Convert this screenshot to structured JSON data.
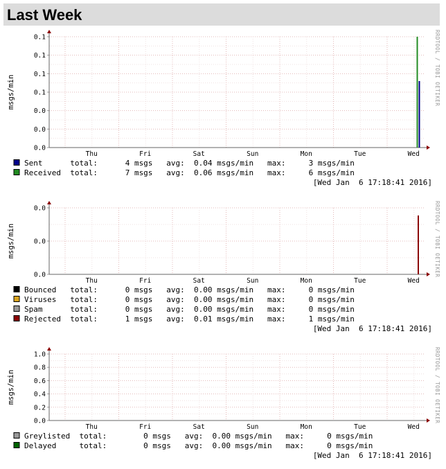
{
  "page": {
    "title": "Last Week"
  },
  "chart_data": [
    {
      "type": "bar",
      "title": "",
      "ylabel": "msgs/min",
      "watermark": "RRDTOOL / TOBI OETIKER",
      "x_labels": [
        "Thu",
        "Fri",
        "Sat",
        "Sun",
        "Mon",
        "Tue",
        "Wed"
      ],
      "y_ticks": [
        "0.0",
        "0.0",
        "0.0",
        "0.1",
        "0.1",
        "0.1",
        "0.1"
      ],
      "ylim": [
        0,
        0.12
      ],
      "grid": true,
      "series": [
        {
          "name": "Sent",
          "color": "#00008b",
          "bar_value": 0.072,
          "total": "4 msgs",
          "avg": "0.04 msgs/min",
          "max": "3 msgs/min"
        },
        {
          "name": "Received",
          "color": "#228b22",
          "bar_value": 0.12,
          "total": "7 msgs",
          "avg": "0.06 msgs/min",
          "max": "6 msgs/min"
        }
      ],
      "timestamp": "[Wed Jan  6 17:18:41 2016]"
    },
    {
      "type": "bar",
      "title": "",
      "ylabel": "msgs/min",
      "watermark": "RRDTOOL / TOBI OETIKER",
      "x_labels": [
        "Thu",
        "Fri",
        "Sat",
        "Sun",
        "Mon",
        "Tue",
        "Wed"
      ],
      "y_ticks": [
        "0.0",
        "0.0",
        "0.0"
      ],
      "ylim": [
        0,
        0.02
      ],
      "grid": true,
      "series": [
        {
          "name": "Bounced",
          "color": "#000000",
          "bar_value": 0,
          "total": "0 msgs",
          "avg": "0.00 msgs/min",
          "max": "0 msgs/min"
        },
        {
          "name": "Viruses",
          "color": "#daa520",
          "bar_value": 0,
          "total": "0 msgs",
          "avg": "0.00 msgs/min",
          "max": "0 msgs/min"
        },
        {
          "name": "Spam",
          "color": "#999999",
          "bar_value": 0,
          "total": "0 msgs",
          "avg": "0.00 msgs/min",
          "max": "0 msgs/min"
        },
        {
          "name": "Rejected",
          "color": "#8b0000",
          "bar_value": 0.0177,
          "total": "1 msgs",
          "avg": "0.01 msgs/min",
          "max": "1 msgs/min"
        }
      ],
      "timestamp": "[Wed Jan  6 17:18:41 2016]"
    },
    {
      "type": "bar",
      "title": "",
      "ylabel": "msgs/min",
      "watermark": "RRDTOOL / TOBI OETIKER",
      "x_labels": [
        "Thu",
        "Fri",
        "Sat",
        "Sun",
        "Mon",
        "Tue",
        "Wed"
      ],
      "y_ticks": [
        "0.0",
        "0.2",
        "0.4",
        "0.6",
        "0.8",
        "1.0"
      ],
      "ylim": [
        0,
        1.0
      ],
      "grid": true,
      "series": [
        {
          "name": "Greylisted",
          "color": "#999999",
          "bar_value": 0,
          "total": "0 msgs",
          "avg": "0.00 msgs/min",
          "max": "0 msgs/min"
        },
        {
          "name": "Delayed",
          "color": "#006400",
          "bar_value": 0,
          "total": "0 msgs",
          "avg": "0.00 msgs/min",
          "max": "0 msgs/min"
        }
      ],
      "timestamp": "[Wed Jan  6 17:18:41 2016]"
    }
  ]
}
